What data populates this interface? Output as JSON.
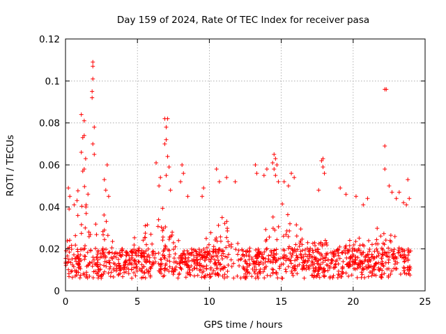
{
  "chart_data": {
    "type": "scatter",
    "title": "Day 159 of 2024, Rate Of TEC Index for receiver pasa",
    "xlabel": "GPS time / hours",
    "ylabel": "ROTI / TECUs",
    "xlim": [
      0,
      25
    ],
    "ylim": [
      0,
      0.12
    ],
    "x_ticks": [
      0,
      5,
      10,
      15,
      20,
      25
    ],
    "y_ticks": [
      0,
      0.02,
      0.04,
      0.06,
      0.08,
      0.1,
      0.12
    ],
    "x_tick_labels": [
      "0",
      "5",
      "10",
      "15",
      "20",
      "25"
    ],
    "y_tick_labels": [
      "0",
      "0.02",
      "0.04",
      "0.06",
      "0.08",
      "0.1",
      "0.12"
    ],
    "grid": true,
    "marker": "+",
    "marker_color": "#ff0000",
    "x_range_of_data": [
      0,
      24
    ],
    "points": [
      [
        1.1,
        0.084
      ],
      [
        1.3,
        0.081
      ],
      [
        1.2,
        0.073
      ],
      [
        1.3,
        0.074
      ],
      [
        1.1,
        0.066
      ],
      [
        1.4,
        0.063
      ],
      [
        1.2,
        0.057
      ],
      [
        1.3,
        0.058
      ],
      [
        1.9,
        0.109
      ],
      [
        1.9,
        0.107
      ],
      [
        1.9,
        0.101
      ],
      [
        1.85,
        0.095
      ],
      [
        1.85,
        0.092
      ],
      [
        2.0,
        0.078
      ],
      [
        1.9,
        0.07
      ],
      [
        2.0,
        0.065
      ],
      [
        2.9,
        0.06
      ],
      [
        2.7,
        0.053
      ],
      [
        2.8,
        0.048
      ],
      [
        3.0,
        0.045
      ],
      [
        0.2,
        0.049
      ],
      [
        0.3,
        0.045
      ],
      [
        0.25,
        0.039
      ],
      [
        0.6,
        0.041
      ],
      [
        0.8,
        0.043
      ],
      [
        6.9,
        0.082
      ],
      [
        7.1,
        0.082
      ],
      [
        7.0,
        0.078
      ],
      [
        7.0,
        0.072
      ],
      [
        6.9,
        0.07
      ],
      [
        7.1,
        0.064
      ],
      [
        7.2,
        0.059
      ],
      [
        7.0,
        0.055
      ],
      [
        6.3,
        0.061
      ],
      [
        6.6,
        0.054
      ],
      [
        6.5,
        0.05
      ],
      [
        7.3,
        0.048
      ],
      [
        8.1,
        0.06
      ],
      [
        8.2,
        0.056
      ],
      [
        8.0,
        0.052
      ],
      [
        8.5,
        0.045
      ],
      [
        9.6,
        0.049
      ],
      [
        9.5,
        0.045
      ],
      [
        10.5,
        0.058
      ],
      [
        10.7,
        0.052
      ],
      [
        11.2,
        0.054
      ],
      [
        11.8,
        0.052
      ],
      [
        13.2,
        0.06
      ],
      [
        13.3,
        0.056
      ],
      [
        13.8,
        0.055
      ],
      [
        14.0,
        0.058
      ],
      [
        14.5,
        0.065
      ],
      [
        14.6,
        0.063
      ],
      [
        14.4,
        0.061
      ],
      [
        14.5,
        0.058
      ],
      [
        14.7,
        0.06
      ],
      [
        14.6,
        0.055
      ],
      [
        14.8,
        0.052
      ],
      [
        15.2,
        0.052
      ],
      [
        15.5,
        0.05
      ],
      [
        15.7,
        0.056
      ],
      [
        15.9,
        0.054
      ],
      [
        17.9,
        0.063
      ],
      [
        17.8,
        0.062
      ],
      [
        17.9,
        0.059
      ],
      [
        18.0,
        0.056
      ],
      [
        17.6,
        0.048
      ],
      [
        19.1,
        0.049
      ],
      [
        19.5,
        0.046
      ],
      [
        20.2,
        0.045
      ],
      [
        20.7,
        0.041
      ],
      [
        21.0,
        0.044
      ],
      [
        22.2,
        0.096
      ],
      [
        22.3,
        0.096
      ],
      [
        22.2,
        0.069
      ],
      [
        22.2,
        0.058
      ],
      [
        22.5,
        0.05
      ],
      [
        22.7,
        0.047
      ],
      [
        23.0,
        0.044
      ],
      [
        23.2,
        0.047
      ],
      [
        23.5,
        0.042
      ],
      [
        23.7,
        0.041
      ],
      [
        23.8,
        0.053
      ],
      [
        23.9,
        0.044
      ]
    ]
  }
}
